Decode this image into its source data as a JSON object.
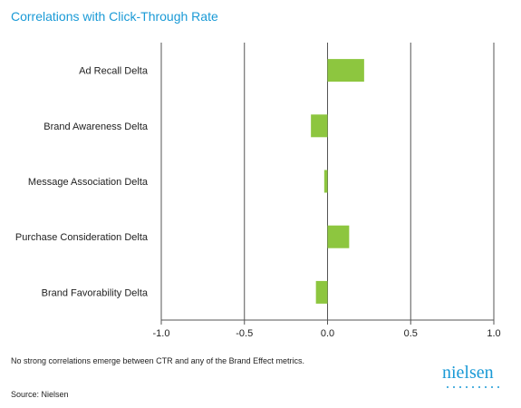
{
  "title": "Correlations with Click-Through Rate",
  "note": "No strong correlations emerge between CTR and any of the Brand Effect metrics.",
  "source": "Source: Nielsen",
  "logo_text": "nielsen",
  "colors": {
    "bar": "#8dc63f",
    "title": "#1a9ad6",
    "axis": "#333333"
  },
  "chart_data": {
    "type": "bar",
    "orientation": "horizontal",
    "title": "Correlations with Click-Through Rate",
    "categories": [
      "Ad Recall Delta",
      "Brand Awareness Delta",
      "Message Association Delta",
      "Purchase Consideration Delta",
      "Brand Favorability Delta"
    ],
    "values": [
      0.22,
      -0.1,
      -0.02,
      0.13,
      -0.07
    ],
    "xlim": [
      -1.0,
      1.0
    ],
    "xticks": [
      "-1.0",
      "-0.5",
      "0.0",
      "0.5",
      "1.0"
    ],
    "xtick_values": [
      -1.0,
      -0.5,
      0.0,
      0.5,
      1.0
    ],
    "grid": "vertical lines at ticks",
    "legend": "none"
  }
}
